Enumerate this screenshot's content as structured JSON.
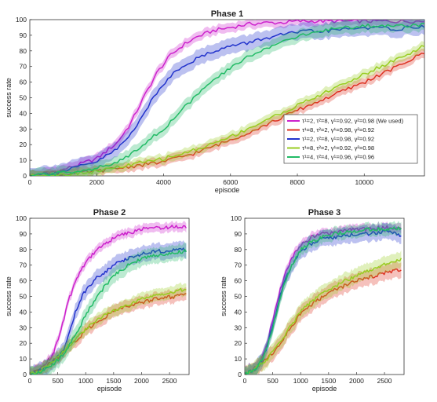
{
  "chart_data": [
    {
      "type": "line",
      "title": "Phase 1",
      "xlabel": "episode",
      "ylabel": "success rate",
      "xlim": [
        0,
        11800
      ],
      "ylim": [
        0,
        100
      ],
      "xticks": [
        0,
        2000,
        4000,
        6000,
        8000,
        10000
      ],
      "yticks": [
        0,
        10,
        20,
        30,
        40,
        50,
        60,
        70,
        80,
        90,
        100
      ],
      "grid": false,
      "legend_position": "center-right",
      "series": [
        {
          "name": "τ¹=2, τ²=8, γ¹=0.92, γ²=0.98 (We used)",
          "color": "#cc22cc",
          "x": [
            0,
            1000,
            2000,
            2600,
            3000,
            3400,
            3800,
            4200,
            4600,
            5000,
            5500,
            6000,
            6500,
            7000,
            7500,
            8000,
            9000,
            10000,
            11000,
            11800
          ],
          "y": [
            0,
            4,
            11,
            21,
            33,
            50,
            66,
            77,
            84,
            89,
            93,
            95,
            97,
            98,
            98,
            99,
            99,
            99,
            99,
            99
          ],
          "band": 3
        },
        {
          "name": "τ¹=8, τ²=2, γ¹=0.98, γ²=0.92",
          "color": "#dd3322",
          "x": [
            0,
            1000,
            2000,
            3000,
            4000,
            5000,
            6000,
            7000,
            8000,
            9000,
            10000,
            11000,
            11800
          ],
          "y": [
            0,
            1,
            3,
            6,
            9,
            15,
            23,
            32,
            42,
            51,
            60,
            70,
            79
          ],
          "band": 3
        },
        {
          "name": "τ¹=2, τ²=8, γ¹=0.98, γ²=0.92",
          "color": "#2233cc",
          "x": [
            0,
            1000,
            2000,
            2600,
            3000,
            3400,
            3800,
            4200,
            4600,
            5000,
            5500,
            6000,
            6500,
            7000,
            8000,
            9000,
            10000,
            11000,
            11800
          ],
          "y": [
            0,
            3,
            9,
            17,
            26,
            40,
            53,
            64,
            71,
            75,
            80,
            83,
            85,
            88,
            92,
            93,
            95,
            94,
            96
          ],
          "band": 5
        },
        {
          "name": "τ¹=8, τ²=2, γ¹=0.92, γ²=0.98",
          "color": "#99cc22",
          "x": [
            0,
            1000,
            2000,
            3000,
            4000,
            5000,
            6000,
            7000,
            8000,
            9000,
            10000,
            11000,
            11800
          ],
          "y": [
            0,
            1,
            3,
            7,
            11,
            17,
            25,
            35,
            45,
            55,
            65,
            75,
            83
          ],
          "band": 3
        },
        {
          "name": "τ¹=4, τ²=4, γ¹=0.96, γ²=0.96",
          "color": "#22bb66",
          "x": [
            0,
            1000,
            2000,
            2600,
            3000,
            3500,
            4000,
            4500,
            5000,
            5500,
            6000,
            6500,
            7000,
            7500,
            8000,
            9000,
            10000,
            11000,
            11800
          ],
          "y": [
            0,
            2,
            5,
            8,
            14,
            22,
            30,
            41,
            52,
            61,
            69,
            76,
            81,
            86,
            89,
            94,
            96,
            96,
            97
          ],
          "band": 4
        }
      ]
    },
    {
      "type": "line",
      "title": "Phase 2",
      "xlabel": "episode",
      "ylabel": "success rate",
      "xlim": [
        0,
        2850
      ],
      "ylim": [
        0,
        100
      ],
      "xticks": [
        0,
        500,
        1000,
        1500,
        2000,
        2500
      ],
      "yticks": [
        0,
        10,
        20,
        30,
        40,
        50,
        60,
        70,
        80,
        90,
        100
      ],
      "grid": false,
      "series": [
        {
          "name": "τ¹=2, τ²=8, γ¹=0.92, γ²=0.98 (We used)",
          "color": "#cc22cc",
          "x": [
            0,
            200,
            400,
            500,
            600,
            700,
            800,
            900,
            1000,
            1200,
            1400,
            1600,
            1800,
            2000,
            2200,
            2400,
            2600,
            2800
          ],
          "y": [
            0,
            4,
            12,
            22,
            34,
            48,
            58,
            66,
            72,
            80,
            85,
            89,
            91,
            93,
            94,
            94,
            95,
            94
          ],
          "band": 3
        },
        {
          "name": "τ¹=8, τ²=2, γ¹=0.98, γ²=0.92",
          "color": "#dd3322",
          "x": [
            0,
            200,
            400,
            600,
            800,
            1000,
            1200,
            1400,
            1600,
            1800,
            2000,
            2200,
            2400,
            2600,
            2800
          ],
          "y": [
            0,
            3,
            8,
            14,
            21,
            28,
            34,
            38,
            42,
            44,
            46,
            48,
            49,
            50,
            52
          ],
          "band": 4
        },
        {
          "name": "τ¹=2, τ²=8, γ¹=0.98, γ²=0.92",
          "color": "#2233cc",
          "x": [
            0,
            200,
            400,
            600,
            700,
            800,
            900,
            1000,
            1200,
            1400,
            1600,
            1800,
            2000,
            2200,
            2400,
            2600,
            2800
          ],
          "y": [
            0,
            3,
            7,
            15,
            26,
            38,
            48,
            54,
            62,
            67,
            72,
            75,
            77,
            79,
            79,
            80,
            80
          ],
          "band": 5
        },
        {
          "name": "τ¹=8, τ²=2, γ¹=0.92, γ²=0.98",
          "color": "#99cc22",
          "x": [
            0,
            200,
            400,
            600,
            800,
            1000,
            1200,
            1400,
            1600,
            1800,
            2000,
            2200,
            2400,
            2600,
            2800
          ],
          "y": [
            0,
            3,
            8,
            15,
            22,
            29,
            35,
            39,
            42,
            45,
            48,
            50,
            52,
            53,
            55
          ],
          "band": 4
        },
        {
          "name": "τ¹=4, τ²=4, γ¹=0.96, γ²=0.96",
          "color": "#22bb66",
          "x": [
            0,
            200,
            400,
            600,
            800,
            1000,
            1200,
            1400,
            1600,
            1800,
            2000,
            2200,
            2400,
            2600,
            2800
          ],
          "y": [
            0,
            2,
            6,
            13,
            24,
            38,
            50,
            59,
            66,
            71,
            74,
            76,
            77,
            78,
            79
          ],
          "band": 5
        }
      ]
    },
    {
      "type": "line",
      "title": "Phase 3",
      "xlabel": "episode",
      "ylabel": "success rate",
      "xlim": [
        0,
        2850
      ],
      "ylim": [
        0,
        100
      ],
      "xticks": [
        0,
        500,
        1000,
        1500,
        2000,
        2500
      ],
      "yticks": [
        0,
        10,
        20,
        30,
        40,
        50,
        60,
        70,
        80,
        90,
        100
      ],
      "grid": false,
      "series": [
        {
          "name": "τ¹=2, τ²=8, γ¹=0.92, γ²=0.98 (We used)",
          "color": "#cc22cc",
          "x": [
            0,
            200,
            300,
            400,
            500,
            600,
            700,
            800,
            900,
            1000,
            1200,
            1400,
            1600,
            1800,
            2000,
            2200,
            2400,
            2600,
            2800
          ],
          "y": [
            0,
            5,
            10,
            20,
            35,
            50,
            62,
            71,
            78,
            83,
            88,
            90,
            91,
            92,
            93,
            93,
            94,
            94,
            94
          ],
          "band": 3
        },
        {
          "name": "τ¹=8, τ²=2, γ¹=0.98, γ²=0.92",
          "color": "#dd3322",
          "x": [
            0,
            200,
            400,
            600,
            800,
            1000,
            1200,
            1400,
            1600,
            1800,
            2000,
            2200,
            2400,
            2600,
            2800
          ],
          "y": [
            0,
            4,
            10,
            18,
            29,
            39,
            45,
            50,
            54,
            57,
            60,
            62,
            64,
            66,
            67
          ],
          "band": 5
        },
        {
          "name": "τ¹=2, τ²=8, γ¹=0.98, γ²=0.92",
          "color": "#2233cc",
          "x": [
            0,
            200,
            300,
            400,
            500,
            600,
            700,
            800,
            900,
            1000,
            1200,
            1400,
            1600,
            1800,
            2000,
            2200,
            2400,
            2600,
            2800
          ],
          "y": [
            0,
            4,
            9,
            18,
            32,
            46,
            58,
            67,
            74,
            79,
            84,
            87,
            88,
            89,
            90,
            90,
            91,
            92,
            89
          ],
          "band": 5
        },
        {
          "name": "τ¹=8, τ²=2, γ¹=0.92, γ²=0.98",
          "color": "#99cc22",
          "x": [
            0,
            200,
            400,
            600,
            800,
            1000,
            1200,
            1400,
            1600,
            1800,
            2000,
            2200,
            2400,
            2600,
            2800
          ],
          "y": [
            0,
            4,
            10,
            19,
            30,
            40,
            47,
            52,
            56,
            60,
            63,
            66,
            69,
            72,
            74
          ],
          "band": 5
        },
        {
          "name": "τ¹=4, τ²=4, γ¹=0.96, γ²=0.96",
          "color": "#22bb66",
          "x": [
            0,
            200,
            300,
            400,
            500,
            600,
            700,
            800,
            900,
            1000,
            1200,
            1400,
            1600,
            1800,
            2000,
            2200,
            2400,
            2600,
            2800
          ],
          "y": [
            0,
            4,
            9,
            17,
            30,
            44,
            57,
            67,
            74,
            80,
            85,
            88,
            90,
            91,
            92,
            93,
            93,
            93,
            94
          ],
          "band": 4
        }
      ]
    }
  ]
}
